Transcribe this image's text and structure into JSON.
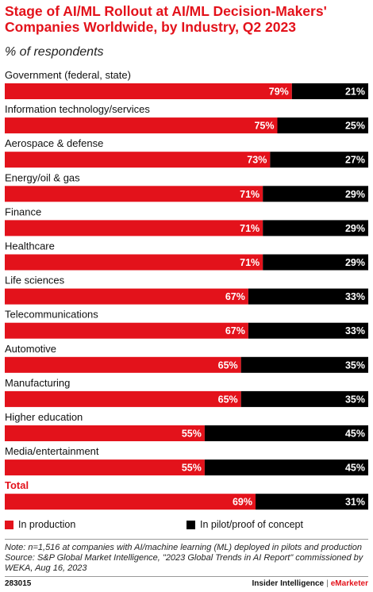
{
  "header": {
    "title": "Stage of AI/ML Rollout at AI/ML Decision-Makers' Companies Worldwide, by Industry, Q2 2023",
    "subtitle": "% of respondents"
  },
  "chart_data": {
    "type": "bar",
    "orientation": "horizontal",
    "stacked": true,
    "value_format": "%",
    "xlim": [
      0,
      100
    ],
    "grid": false,
    "legend_position": "bottom",
    "categories": [
      "Government (federal, state)",
      "Information technology/services",
      "Aerospace & defense",
      "Energy/oil & gas",
      "Finance",
      "Healthcare",
      "Life sciences",
      "Telecommunications",
      "Automotive",
      "Manufacturing",
      "Higher education",
      "Media/entertainment",
      "Total"
    ],
    "series": [
      {
        "name": "In production",
        "color": "#e3121b",
        "values": [
          79,
          75,
          73,
          71,
          71,
          71,
          67,
          67,
          65,
          65,
          55,
          55,
          69
        ]
      },
      {
        "name": "In pilot/proof of concept",
        "color": "#000000",
        "values": [
          21,
          25,
          27,
          29,
          29,
          29,
          33,
          33,
          35,
          35,
          45,
          45,
          31
        ]
      }
    ],
    "highlight_category": "Total",
    "highlight_color": "#e3121b"
  },
  "footer": {
    "note": "Note: n=1,516 at companies with AI/machine learning (ML) deployed in pilots and production",
    "source": "Source: S&P Global Market Intelligence, \"2023 Global Trends in AI Report\" commissioned by WEKA, Aug 16, 2023",
    "chart_id": "283015",
    "brand_left": "Insider Intelligence",
    "brand_separator": "|",
    "brand_right": "eMarketer"
  }
}
